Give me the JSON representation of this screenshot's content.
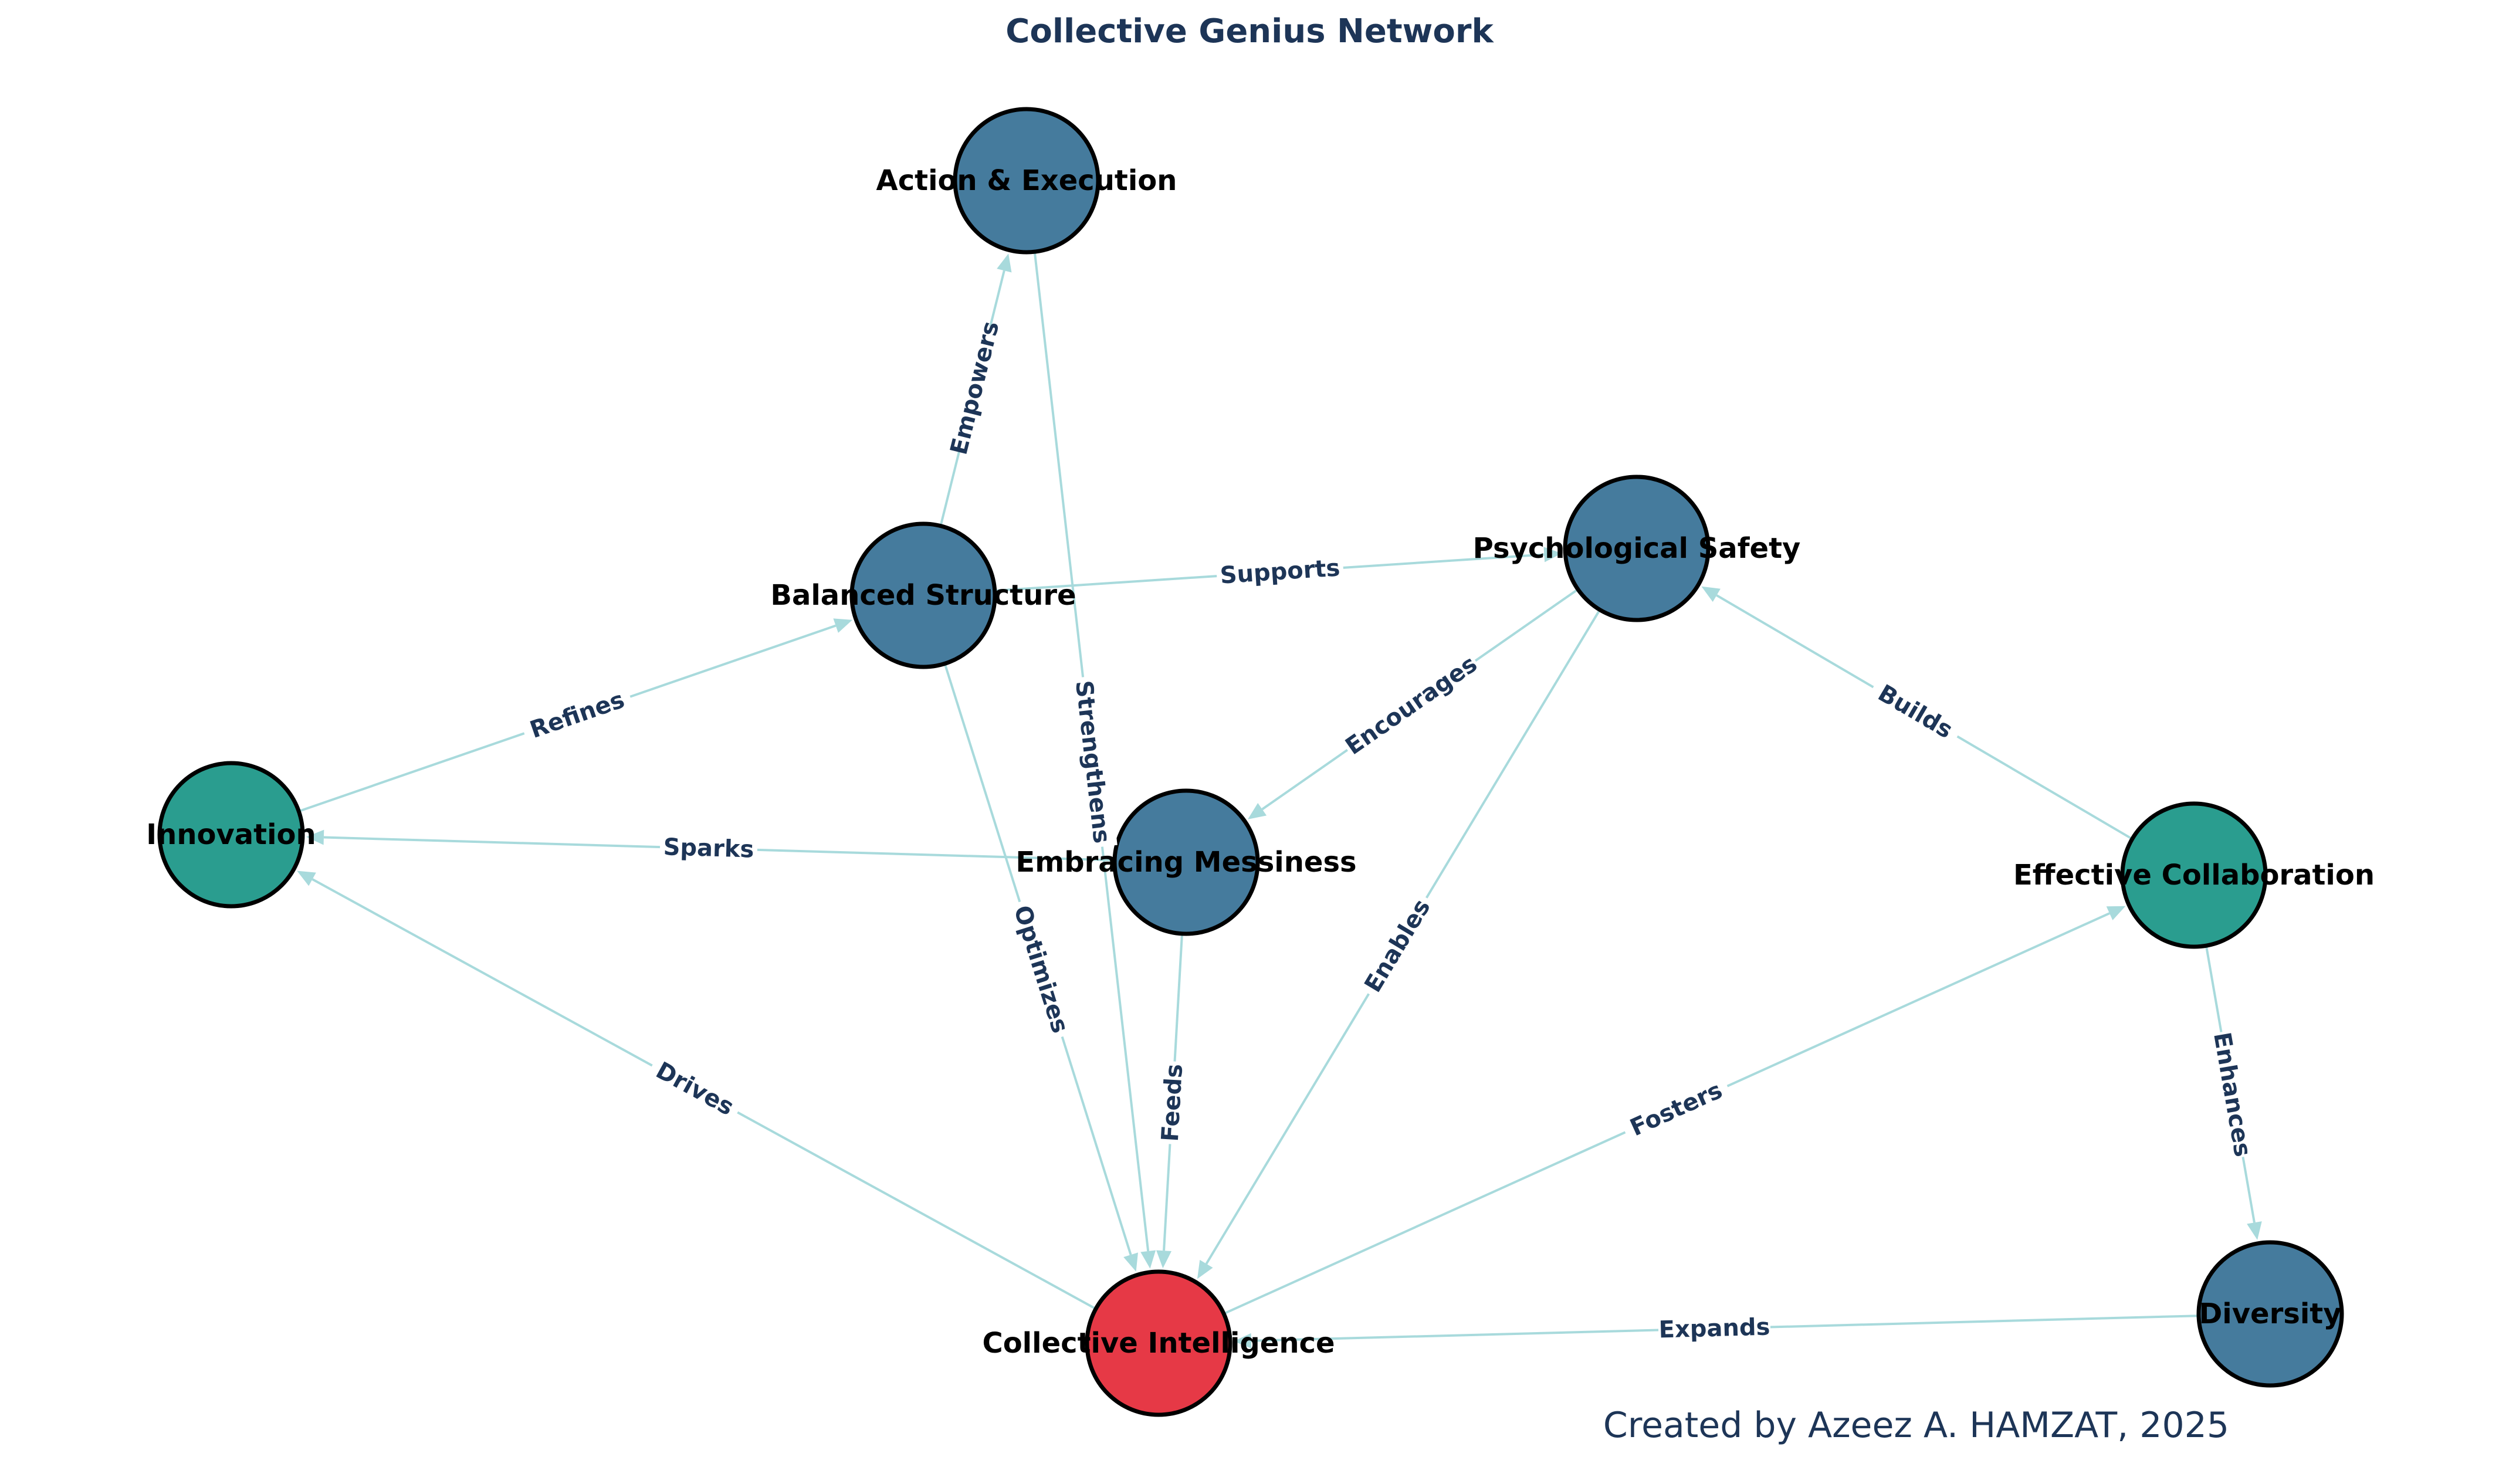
{
  "diagram": {
    "title": "Collective Genius Network",
    "credit": "Created by Azeez A. HAMZAT, 2025",
    "colors": {
      "central": "#e63946",
      "primary": "#457b9d",
      "secondary": "#2a9d8f",
      "edge": "#a8dadc",
      "text": "#1d3557"
    },
    "nodes": [
      {
        "id": "collective-intelligence",
        "label": "Collective Intelligence",
        "group": "central"
      },
      {
        "id": "psychological-safety",
        "label": "Psychological Safety",
        "group": "primary"
      },
      {
        "id": "diversity",
        "label": "Diversity",
        "group": "primary"
      },
      {
        "id": "embracing-messiness",
        "label": "Embracing Messiness",
        "group": "primary"
      },
      {
        "id": "balanced-structure",
        "label": "Balanced Structure",
        "group": "primary"
      },
      {
        "id": "action-execution",
        "label": "Action & Execution",
        "group": "primary"
      },
      {
        "id": "innovation",
        "label": "Innovation",
        "group": "secondary"
      },
      {
        "id": "effective-collaboration",
        "label": "Effective Collaboration",
        "group": "secondary"
      }
    ],
    "edges": [
      {
        "source": "psychological-safety",
        "target": "collective-intelligence",
        "label": "Enables"
      },
      {
        "source": "diversity",
        "target": "collective-intelligence",
        "label": "Expands"
      },
      {
        "source": "embracing-messiness",
        "target": "collective-intelligence",
        "label": "Feeds"
      },
      {
        "source": "balanced-structure",
        "target": "collective-intelligence",
        "label": "Optimizes"
      },
      {
        "source": "action-execution",
        "target": "collective-intelligence",
        "label": "Strengthens"
      },
      {
        "source": "collective-intelligence",
        "target": "innovation",
        "label": "Drives"
      },
      {
        "source": "collective-intelligence",
        "target": "effective-collaboration",
        "label": "Fosters"
      },
      {
        "source": "psychological-safety",
        "target": "embracing-messiness",
        "label": "Encourages"
      },
      {
        "source": "embracing-messiness",
        "target": "innovation",
        "label": "Sparks"
      },
      {
        "source": "balanced-structure",
        "target": "psychological-safety",
        "label": "Supports"
      },
      {
        "source": "effective-collaboration",
        "target": "psychological-safety",
        "label": "Builds"
      },
      {
        "source": "effective-collaboration",
        "target": "diversity",
        "label": "Enhances"
      },
      {
        "source": "innovation",
        "target": "balanced-structure",
        "label": "Refines"
      },
      {
        "source": "balanced-structure",
        "target": "action-execution",
        "label": "Empowers"
      }
    ]
  }
}
